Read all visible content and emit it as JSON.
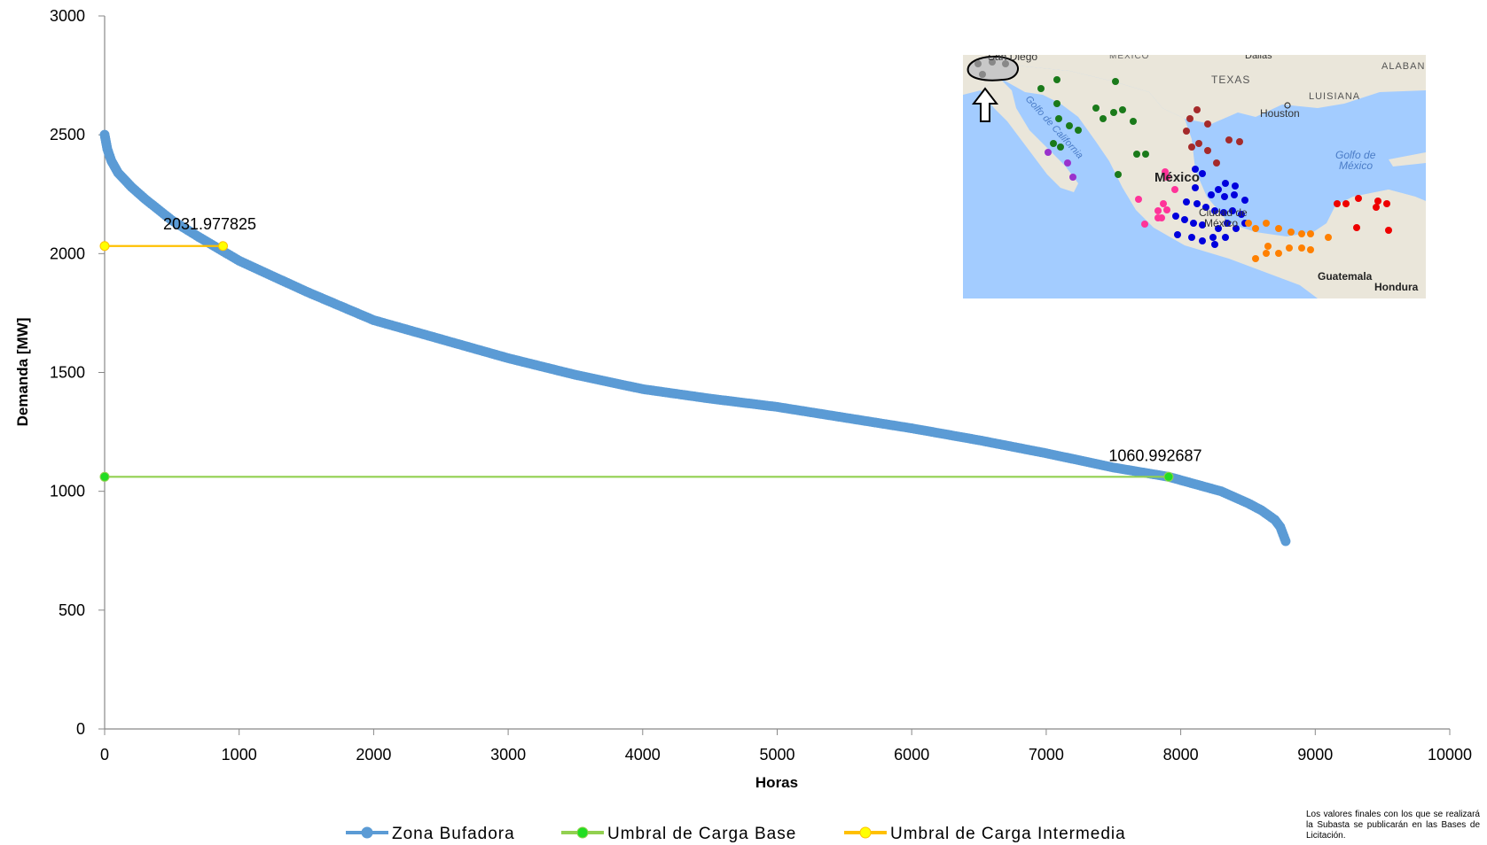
{
  "chart_data": {
    "type": "line",
    "xlabel": "Horas",
    "ylabel": "Demanda [MW]",
    "xlim": [
      0,
      10000
    ],
    "ylim": [
      0,
      3000
    ],
    "x_ticks": [
      "0",
      "1000",
      "2000",
      "3000",
      "4000",
      "5000",
      "6000",
      "7000",
      "8000",
      "9000",
      "10000"
    ],
    "y_ticks": [
      "0",
      "500",
      "1000",
      "1500",
      "2000",
      "2500",
      "3000"
    ],
    "grid": false,
    "legend_position": "bottom",
    "series": [
      {
        "name": "Zona Bufadora",
        "color": "#5b9bd5",
        "marker": "circle",
        "x": [
          0,
          20,
          50,
          100,
          200,
          300,
          500,
          700,
          1000,
          1500,
          2000,
          2500,
          3000,
          3500,
          4000,
          4500,
          5000,
          5500,
          6000,
          6500,
          7000,
          7500,
          7910,
          8300,
          8500,
          8600,
          8700,
          8740,
          8760,
          8780
        ],
        "y": [
          2500,
          2440,
          2390,
          2340,
          2280,
          2230,
          2140,
          2070,
          1970,
          1840,
          1720,
          1640,
          1560,
          1490,
          1430,
          1390,
          1355,
          1310,
          1265,
          1215,
          1160,
          1100,
          1061,
          1000,
          950,
          920,
          880,
          850,
          820,
          790
        ]
      },
      {
        "name": "Umbral de Carga Base",
        "color": "#92d050",
        "marker_color": "#22dd22",
        "x": [
          0,
          7910
        ],
        "y": [
          1060.992687,
          1060.992687
        ],
        "label": "1060.992687"
      },
      {
        "name": "Umbral de Carga Intermedia",
        "color": "#ffc000",
        "marker_color": "#ffff00",
        "x": [
          0,
          880
        ],
        "y": [
          2031.977825,
          2031.977825
        ],
        "label": "2031.977825"
      }
    ]
  },
  "inset_map": {
    "labels": {
      "san_diego": "San Diego",
      "mexico_top": "MEXICO",
      "dallas": "Dallas",
      "texas": "TEXAS",
      "alabama": "ALABAN",
      "luisiana": "LUISIANA",
      "houston": "Houston",
      "golfo_california": "Golfo de California",
      "golfo_mexico_1": "Golfo de",
      "golfo_mexico_2": "México",
      "mexico_country": "México",
      "ciudad_1": "Ciudad de",
      "ciudad_2": "México",
      "guatemala": "Guatemala",
      "honduras": "Hondura"
    },
    "colors": {
      "water": "#a3ccff",
      "land": "#eae6da",
      "highlight": "#c8c8c8"
    }
  },
  "footnote": "Los valores finales con los que se realizará la Subasta se publicarán en las Bases de Licitación."
}
